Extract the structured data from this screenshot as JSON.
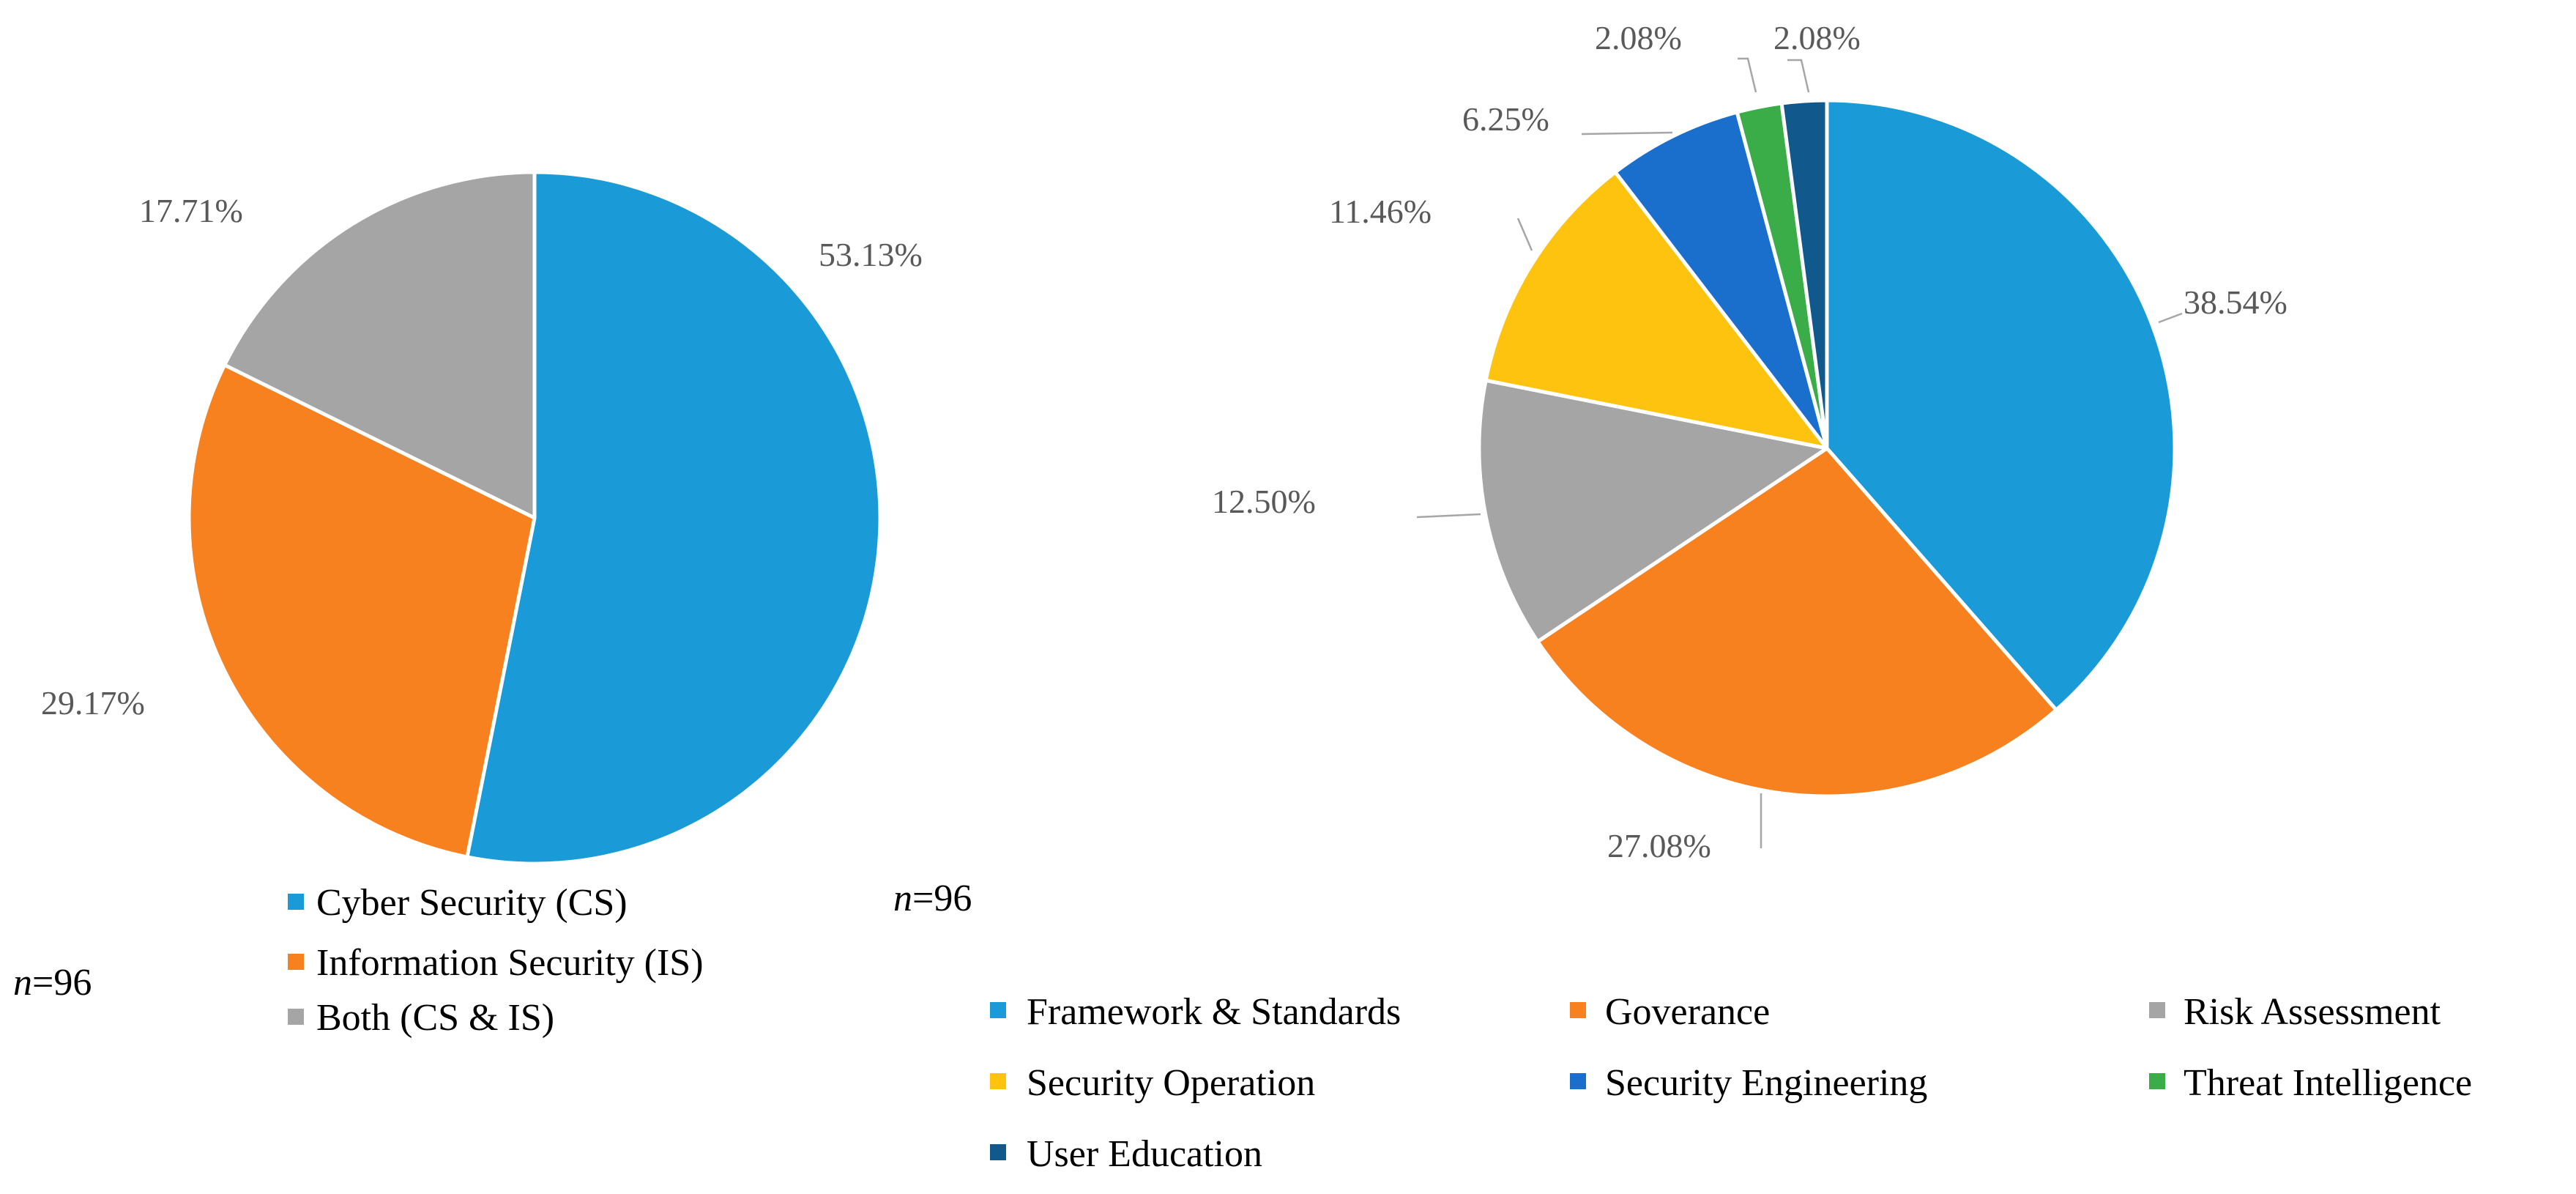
{
  "colors": {
    "blue": "#1a9ad6",
    "orange": "#f7801f",
    "gray": "#a5a5a5",
    "yellow": "#fdc30f",
    "mid_blue": "#1a6fcc",
    "green": "#3aad48",
    "dark_blue": "#11598c",
    "label_text": "#595959",
    "leader": "#a6a6a6"
  },
  "chart_data": [
    {
      "type": "pie",
      "title": "",
      "n_label": {
        "italic": "n",
        "rest": "=96"
      },
      "legend_position": "bottom",
      "categories": [
        "Cyber Security (CS)",
        "Information Security (IS)",
        "Both (CS & IS)"
      ],
      "values": [
        53.13,
        29.17,
        17.71
      ],
      "labels": [
        "53.13%",
        "29.17%",
        "17.71%"
      ],
      "colors": [
        "#1a9ad6",
        "#f7801f",
        "#a5a5a5"
      ]
    },
    {
      "type": "pie",
      "title": "",
      "n_label": {
        "italic": "n",
        "rest": "=96"
      },
      "legend_position": "bottom",
      "categories": [
        "Framework & Standards",
        "Goverance",
        "Risk Assessment",
        "Security Operation",
        "Security Engineering",
        "Threat Intelligence",
        "User Education"
      ],
      "values": [
        38.54,
        27.08,
        12.5,
        11.46,
        6.25,
        2.08,
        2.08
      ],
      "labels": [
        "38.54%",
        "27.08%",
        "12.50%",
        "11.46%",
        "6.25%",
        "2.08%",
        "2.08%"
      ],
      "colors": [
        "#1a9ad6",
        "#f7801f",
        "#a5a5a5",
        "#fdc30f",
        "#1a6fcc",
        "#3aad48",
        "#11598c"
      ]
    }
  ]
}
